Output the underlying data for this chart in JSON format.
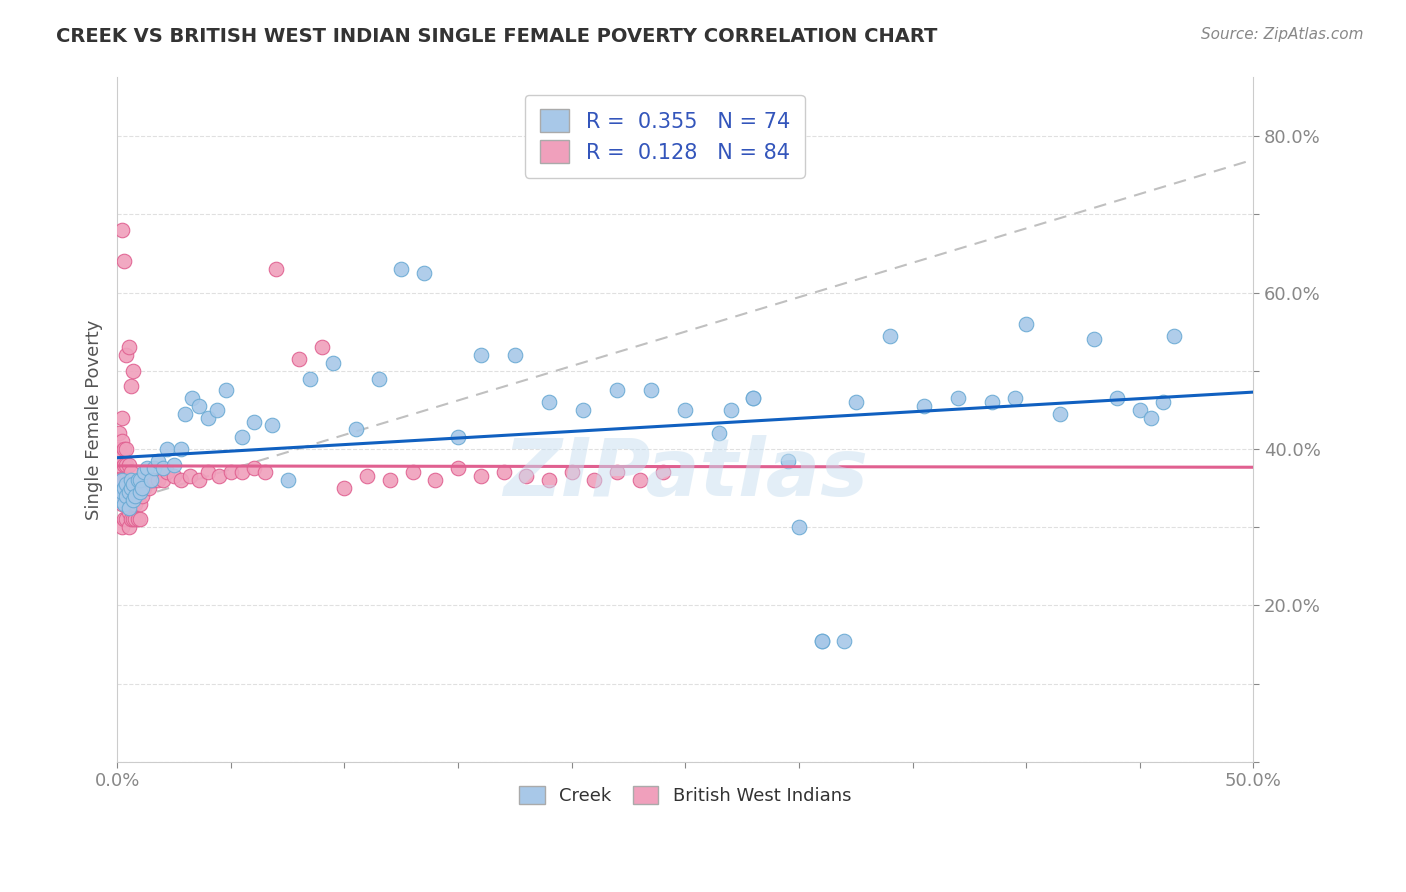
{
  "title": "CREEK VS BRITISH WEST INDIAN SINGLE FEMALE POVERTY CORRELATION CHART",
  "source": "Source: ZipAtlas.com",
  "ylabel": "Single Female Poverty",
  "xlim": [
    0.0,
    0.5
  ],
  "ylim": [
    0.0,
    0.875
  ],
  "creek_color": "#a8c8e8",
  "creek_edge_color": "#6aaad4",
  "bwi_color": "#f0a0bc",
  "bwi_edge_color": "#e06090",
  "creek_line_color": "#1060c0",
  "bwi_line_color": "#e06090",
  "diag_line_color": "#c0c0c0",
  "creek_R": 0.355,
  "creek_N": 74,
  "bwi_R": 0.128,
  "bwi_N": 84,
  "watermark": "ZIPatlas",
  "legend_label_creek": "Creek",
  "legend_label_bwi": "British West Indians",
  "creek_x": [
    0.001,
    0.002,
    0.002,
    0.003,
    0.003,
    0.004,
    0.004,
    0.005,
    0.005,
    0.006,
    0.006,
    0.007,
    0.007,
    0.008,
    0.009,
    0.01,
    0.01,
    0.011,
    0.012,
    0.013,
    0.015,
    0.016,
    0.018,
    0.02,
    0.022,
    0.025,
    0.028,
    0.03,
    0.033,
    0.036,
    0.04,
    0.044,
    0.048,
    0.055,
    0.06,
    0.068,
    0.075,
    0.085,
    0.095,
    0.105,
    0.115,
    0.125,
    0.135,
    0.15,
    0.16,
    0.175,
    0.19,
    0.205,
    0.22,
    0.235,
    0.25,
    0.265,
    0.28,
    0.295,
    0.31,
    0.325,
    0.34,
    0.355,
    0.37,
    0.385,
    0.27,
    0.28,
    0.3,
    0.31,
    0.32,
    0.395,
    0.4,
    0.415,
    0.43,
    0.44,
    0.45,
    0.455,
    0.46,
    0.465
  ],
  "creek_y": [
    0.335,
    0.345,
    0.36,
    0.33,
    0.35,
    0.34,
    0.355,
    0.325,
    0.345,
    0.35,
    0.36,
    0.335,
    0.355,
    0.34,
    0.36,
    0.345,
    0.36,
    0.35,
    0.37,
    0.375,
    0.36,
    0.375,
    0.385,
    0.375,
    0.4,
    0.38,
    0.4,
    0.445,
    0.465,
    0.455,
    0.44,
    0.45,
    0.475,
    0.415,
    0.435,
    0.43,
    0.36,
    0.49,
    0.51,
    0.425,
    0.49,
    0.63,
    0.625,
    0.415,
    0.52,
    0.52,
    0.46,
    0.45,
    0.475,
    0.475,
    0.45,
    0.42,
    0.465,
    0.385,
    0.155,
    0.46,
    0.545,
    0.455,
    0.465,
    0.46,
    0.45,
    0.465,
    0.3,
    0.155,
    0.155,
    0.465,
    0.56,
    0.445,
    0.54,
    0.465,
    0.45,
    0.44,
    0.46,
    0.545
  ],
  "bwi_x": [
    0.001,
    0.001,
    0.001,
    0.001,
    0.001,
    0.002,
    0.002,
    0.002,
    0.002,
    0.002,
    0.002,
    0.003,
    0.003,
    0.003,
    0.003,
    0.003,
    0.004,
    0.004,
    0.004,
    0.004,
    0.004,
    0.005,
    0.005,
    0.005,
    0.005,
    0.005,
    0.006,
    0.006,
    0.006,
    0.006,
    0.007,
    0.007,
    0.007,
    0.008,
    0.008,
    0.008,
    0.009,
    0.009,
    0.01,
    0.01,
    0.01,
    0.011,
    0.012,
    0.013,
    0.014,
    0.015,
    0.016,
    0.018,
    0.02,
    0.022,
    0.025,
    0.028,
    0.032,
    0.036,
    0.04,
    0.045,
    0.05,
    0.055,
    0.06,
    0.065,
    0.07,
    0.08,
    0.09,
    0.1,
    0.11,
    0.12,
    0.13,
    0.14,
    0.15,
    0.16,
    0.17,
    0.18,
    0.19,
    0.2,
    0.21,
    0.22,
    0.23,
    0.24,
    0.002,
    0.003,
    0.004,
    0.005,
    0.006,
    0.007
  ],
  "bwi_y": [
    0.38,
    0.4,
    0.34,
    0.36,
    0.42,
    0.3,
    0.33,
    0.36,
    0.39,
    0.41,
    0.44,
    0.31,
    0.34,
    0.36,
    0.38,
    0.4,
    0.31,
    0.34,
    0.36,
    0.38,
    0.4,
    0.3,
    0.32,
    0.34,
    0.36,
    0.38,
    0.31,
    0.33,
    0.35,
    0.37,
    0.31,
    0.33,
    0.35,
    0.31,
    0.33,
    0.35,
    0.31,
    0.34,
    0.31,
    0.33,
    0.35,
    0.34,
    0.35,
    0.36,
    0.35,
    0.36,
    0.36,
    0.36,
    0.36,
    0.37,
    0.365,
    0.36,
    0.365,
    0.36,
    0.37,
    0.365,
    0.37,
    0.37,
    0.375,
    0.37,
    0.63,
    0.515,
    0.53,
    0.35,
    0.365,
    0.36,
    0.37,
    0.36,
    0.375,
    0.365,
    0.37,
    0.365,
    0.36,
    0.37,
    0.36,
    0.37,
    0.36,
    0.37,
    0.68,
    0.64,
    0.52,
    0.53,
    0.48,
    0.5
  ]
}
